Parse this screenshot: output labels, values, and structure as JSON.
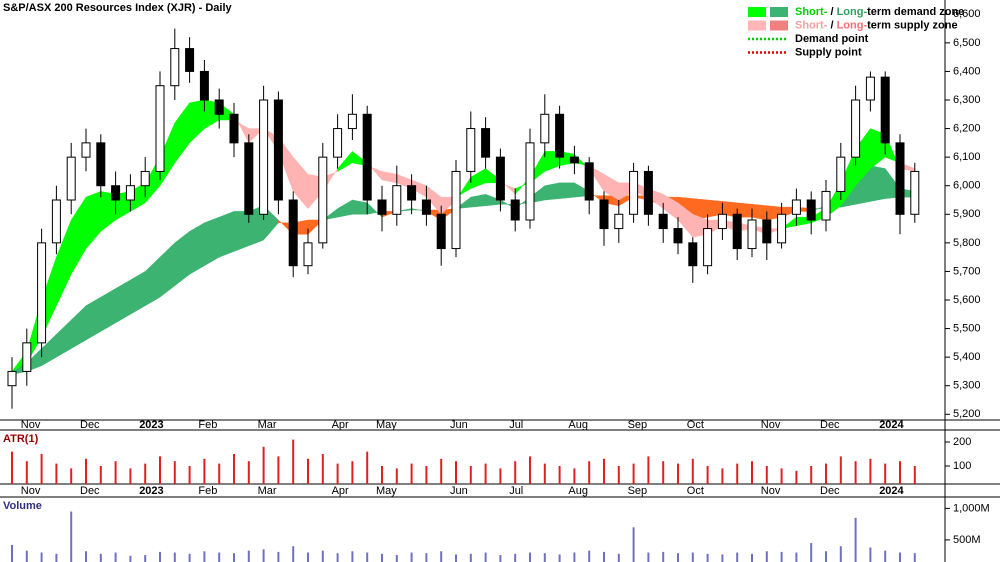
{
  "chart_data": {
    "type": "candlestick",
    "title": "S&P/ASX 200 Resources Index (XJR) - Daily",
    "categories": [
      null,
      "Nov",
      null,
      null,
      null,
      "Dec",
      null,
      null,
      null,
      "2023",
      null,
      null,
      null,
      "Feb",
      null,
      null,
      null,
      "Mar",
      null,
      null,
      null,
      null,
      "Apr",
      null,
      null,
      "May",
      null,
      null,
      null,
      null,
      "Jun",
      null,
      null,
      null,
      "Jul",
      null,
      null,
      null,
      "Aug",
      null,
      null,
      null,
      "Sep",
      null,
      null,
      null,
      "Oct",
      null,
      null,
      null,
      null,
      "Nov",
      null,
      null,
      null,
      "Dec",
      null,
      null,
      null,
      "2024",
      null,
      null
    ],
    "open": [
      5300,
      5350,
      5450,
      5800,
      5950,
      6100,
      6150,
      6000,
      5950,
      6000,
      6050,
      6350,
      6480,
      6400,
      6300,
      6250,
      6150,
      5900,
      6300,
      5950,
      5720,
      5800,
      6100,
      6200,
      6250,
      5950,
      5900,
      6000,
      5950,
      5900,
      5780,
      6050,
      6200,
      6100,
      5950,
      5880,
      6150,
      6250,
      6100,
      6080,
      5950,
      5850,
      5900,
      6050,
      5900,
      5850,
      5800,
      5720,
      5850,
      5900,
      5780,
      5880,
      5800,
      5900,
      5950,
      5880,
      5980,
      6100,
      6300,
      6380,
      6150,
      5900
    ],
    "high": [
      5400,
      5500,
      5850,
      6000,
      6150,
      6200,
      6180,
      6050,
      6040,
      6100,
      6400,
      6550,
      6520,
      6440,
      6340,
      6290,
      6180,
      6350,
      6330,
      5980,
      5850,
      6150,
      6250,
      6320,
      6280,
      6000,
      6070,
      6040,
      6000,
      5930,
      6090,
      6260,
      6240,
      6130,
      5990,
      6200,
      6320,
      6280,
      6140,
      6100,
      5980,
      5950,
      6080,
      6070,
      5940,
      5890,
      5820,
      5900,
      5940,
      5920,
      5920,
      5910,
      5940,
      5990,
      5980,
      6020,
      6150,
      6350,
      6400,
      6400,
      6180,
      6080
    ],
    "low": [
      5220,
      5300,
      5400,
      5760,
      5900,
      6050,
      5960,
      5900,
      5910,
      5960,
      6020,
      6300,
      6360,
      6260,
      6200,
      6100,
      5870,
      5880,
      5900,
      5680,
      5690,
      5780,
      6060,
      6160,
      5900,
      5840,
      5860,
      5900,
      5860,
      5720,
      5750,
      6010,
      6060,
      5910,
      5840,
      5850,
      6100,
      6060,
      6040,
      5900,
      5790,
      5800,
      5870,
      5860,
      5800,
      5760,
      5660,
      5690,
      5810,
      5740,
      5750,
      5740,
      5780,
      5860,
      5830,
      5840,
      5950,
      6070,
      6260,
      6110,
      5830,
      5870
    ],
    "close": [
      5350,
      5450,
      5800,
      5950,
      6100,
      6150,
      6000,
      5950,
      6000,
      6050,
      6350,
      6480,
      6400,
      6300,
      6250,
      6150,
      5900,
      6300,
      5950,
      5720,
      5800,
      6100,
      6200,
      6250,
      5950,
      5900,
      6000,
      5950,
      5900,
      5780,
      6050,
      6200,
      6100,
      5950,
      5880,
      6150,
      6250,
      6100,
      6080,
      5950,
      5850,
      5900,
      6050,
      5900,
      5850,
      5800,
      5720,
      5850,
      5900,
      5780,
      5880,
      5800,
      5900,
      5950,
      5880,
      5980,
      6100,
      6300,
      6380,
      6150,
      5900,
      6050
    ],
    "short_fast": [
      5350,
      5420,
      5600,
      5750,
      5880,
      5960,
      5980,
      5970,
      5980,
      6010,
      6100,
      6220,
      6290,
      6300,
      6290,
      6250,
      6150,
      6200,
      6120,
      5980,
      5920,
      5980,
      6060,
      6120,
      6080,
      6020,
      6010,
      5990,
      5960,
      5900,
      5950,
      6030,
      6060,
      6020,
      5970,
      6030,
      6120,
      6120,
      6110,
      6060,
      5980,
      5950,
      5980,
      5960,
      5920,
      5880,
      5820,
      5830,
      5860,
      5840,
      5850,
      5830,
      5850,
      5890,
      5890,
      5920,
      6010,
      6130,
      6200,
      6180,
      6060,
      6050
    ],
    "short_slow": [
      5350,
      5380,
      5470,
      5580,
      5690,
      5780,
      5840,
      5880,
      5910,
      5940,
      6000,
      6080,
      6150,
      6200,
      6230,
      6230,
      6200,
      6200,
      6170,
      6100,
      6040,
      6030,
      6050,
      6080,
      6070,
      6050,
      6040,
      6020,
      6000,
      5960,
      5960,
      5990,
      6010,
      6010,
      5990,
      6010,
      6050,
      6070,
      6080,
      6070,
      6040,
      6010,
      6010,
      5990,
      5970,
      5940,
      5900,
      5880,
      5880,
      5870,
      5860,
      5850,
      5850,
      5860,
      5870,
      5890,
      5930,
      6000,
      6060,
      6100,
      6080,
      6060
    ],
    "long_fast": [
      5350,
      5380,
      5430,
      5480,
      5530,
      5580,
      5610,
      5640,
      5670,
      5700,
      5750,
      5800,
      5840,
      5870,
      5890,
      5910,
      5910,
      5930,
      5880,
      5830,
      5830,
      5880,
      5920,
      5950,
      5940,
      5890,
      5910,
      5920,
      5910,
      5880,
      5920,
      5960,
      5970,
      5950,
      5920,
      5960,
      6000,
      6010,
      6010,
      5980,
      5940,
      5930,
      5960,
      5950,
      5930,
      5910,
      5880,
      5890,
      5900,
      5890,
      5890,
      5880,
      5890,
      5910,
      5910,
      5930,
      5970,
      6030,
      6070,
      6060,
      5990,
      5980
    ],
    "long_slow": [
      5340,
      5350,
      5370,
      5400,
      5430,
      5460,
      5490,
      5520,
      5550,
      5580,
      5610,
      5650,
      5690,
      5720,
      5750,
      5770,
      5790,
      5810,
      5870,
      5870,
      5880,
      5880,
      5890,
      5900,
      5900,
      5910,
      5910,
      5915,
      5915,
      5915,
      5920,
      5925,
      5930,
      5935,
      5935,
      5940,
      5950,
      5955,
      5960,
      5965,
      5965,
      5965,
      5965,
      5965,
      5960,
      5960,
      5955,
      5950,
      5945,
      5940,
      5935,
      5930,
      5925,
      5925,
      5920,
      5920,
      5925,
      5935,
      5945,
      5955,
      5960,
      5960
    ],
    "zone_colors": {
      "short_demand": "#00ff00",
      "short_supply": "#ffb3b3",
      "long_demand": "#3cb371",
      "long_supply": "#ff6a21"
    },
    "ylim": [
      5180,
      6650
    ],
    "yticks": [
      {
        "value": 5200,
        "label": "5,200"
      },
      {
        "value": 5300,
        "label": "5,300"
      },
      {
        "value": 5400,
        "label": "5,400"
      },
      {
        "value": 5500,
        "label": "5,500"
      },
      {
        "value": 5600,
        "label": "5,600"
      },
      {
        "value": 5700,
        "label": "5,700"
      },
      {
        "value": 5800,
        "label": "5,800"
      },
      {
        "value": 5900,
        "label": "5,900"
      },
      {
        "value": 6000,
        "label": "6,000"
      },
      {
        "value": 6100,
        "label": "6,100"
      },
      {
        "value": 6200,
        "label": "6,200"
      },
      {
        "value": 6300,
        "label": "6,300"
      },
      {
        "value": 6400,
        "label": "6,400"
      },
      {
        "value": 6500,
        "label": "6,500"
      },
      {
        "value": 6600,
        "label": "6,600"
      }
    ],
    "legend": [
      {
        "parts": [
          {
            "text": "Short-",
            "color": "#00d000"
          },
          {
            "text": " / ",
            "color": "#000000"
          },
          {
            "text": "Long-",
            "color": "#2e9e5e"
          },
          {
            "text": "term demand zone",
            "color": "#000000"
          }
        ],
        "swatches": [
          "#00ff00",
          "#3cb371"
        ]
      },
      {
        "parts": [
          {
            "text": "Short-",
            "color": "#f4a0a0"
          },
          {
            "text": " / ",
            "color": "#000000"
          },
          {
            "text": "Long-",
            "color": "#f07070"
          },
          {
            "text": "term supply zone",
            "color": "#000000"
          }
        ],
        "swatches": [
          "#ffb6b6",
          "#f08080"
        ]
      },
      {
        "parts": [
          {
            "text": "Demand point",
            "color": "#000000"
          }
        ],
        "line": "#00cc00"
      },
      {
        "parts": [
          {
            "text": "Supply point",
            "color": "#000000"
          }
        ],
        "line": "#e00000"
      }
    ],
    "atr": {
      "label": "ATR(1)",
      "color": "#e02020",
      "ylim": [
        25,
        250
      ],
      "yticks": [
        100,
        200
      ],
      "values": [
        160,
        120,
        150,
        110,
        90,
        130,
        100,
        120,
        90,
        110,
        140,
        120,
        100,
        130,
        110,
        150,
        120,
        180,
        140,
        210,
        130,
        150,
        110,
        120,
        160,
        100,
        90,
        110,
        100,
        130,
        120,
        100,
        110,
        90,
        120,
        140,
        110,
        100,
        90,
        120,
        130,
        100,
        110,
        140,
        120,
        110,
        130,
        100,
        90,
        110,
        120,
        100,
        90,
        80,
        100,
        110,
        140,
        120,
        130,
        110,
        120,
        100
      ]
    },
    "volume": {
      "label": "Volume",
      "color": "#7070c0",
      "ylim": [
        150,
        1180
      ],
      "yticks": [
        {
          "value": 500,
          "label": "500M"
        },
        {
          "value": 1000,
          "label": "1,000M"
        }
      ],
      "values": [
        420,
        330,
        300,
        280,
        950,
        320,
        280,
        300,
        250,
        260,
        310,
        300,
        280,
        320,
        300,
        290,
        330,
        350,
        310,
        400,
        300,
        330,
        290,
        320,
        300,
        280,
        260,
        300,
        290,
        320,
        270,
        280,
        300,
        260,
        280,
        300,
        290,
        270,
        300,
        330,
        310,
        280,
        700,
        300,
        310,
        290,
        300,
        280,
        270,
        300,
        280,
        320,
        310,
        300,
        450,
        320,
        400,
        850,
        380,
        330,
        300,
        290
      ]
    }
  }
}
